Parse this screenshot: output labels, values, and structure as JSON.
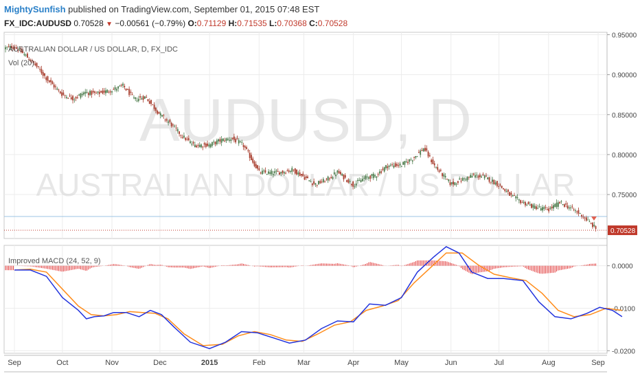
{
  "header": {
    "user": "MightySunfish",
    "published_text": " published on TradingView.com, September 01, 2015 07:48 EST",
    "symbol": "FX_IDC:AUDUSD",
    "last": "0.70528",
    "change": "−0.00561 (−0.79%)",
    "o_label": "O:",
    "o_value": "0.71129",
    "h_label": "H:",
    "h_value": "0.71535",
    "l_label": "L:",
    "l_value": "0.70368",
    "c_label": "C:",
    "c_value": "0.70528"
  },
  "watermark": {
    "big": "AUDUSD, D",
    "small": "AUSTRALIAN DOLLAR / US DOLLAR"
  },
  "colors": {
    "up": "#4a7a4a",
    "down": "#a63a2a",
    "macd_line": "#2233dd",
    "signal_line": "#ff8c1a",
    "hist": "#e03030",
    "price_tag": "#c0392b",
    "hline": "#9cc4e4"
  },
  "chart_data": [
    {
      "type": "candlestick",
      "title": "AUSTRALIAN DOLLAR / US DOLLAR, D, FX_IDC",
      "indicator_label": "Vol (20)",
      "ylim": [
        0.695,
        0.953
      ],
      "yticks": [
        "0.95000",
        "0.90000",
        "0.85000",
        "0.80000",
        "0.75000"
      ],
      "last_price_label": "0.70528",
      "reference_line": 0.7225,
      "x_ticks": [
        "Sep",
        "Oct",
        "Nov",
        "Dec",
        "2015",
        "Feb",
        "Mar",
        "Apr",
        "May",
        "Jun",
        "Jul",
        "Aug",
        "Sep"
      ],
      "close_path": [
        [
          "Aug 22",
          0.932
        ],
        [
          "Sep 1",
          0.935
        ],
        [
          "Sep 8",
          0.924
        ],
        [
          "Sep 15",
          0.91
        ],
        [
          "Sep 22",
          0.893
        ],
        [
          "Oct 1",
          0.875
        ],
        [
          "Oct 8",
          0.87
        ],
        [
          "Oct 15",
          0.878
        ],
        [
          "Oct 22",
          0.876
        ],
        [
          "Nov 1",
          0.881
        ],
        [
          "Nov 8",
          0.886
        ],
        [
          "Nov 15",
          0.869
        ],
        [
          "Nov 22",
          0.872
        ],
        [
          "Dec 1",
          0.85
        ],
        [
          "Dec 8",
          0.838
        ],
        [
          "Dec 15",
          0.823
        ],
        [
          "Dec 22",
          0.812
        ],
        [
          "Jan 1",
          0.812
        ],
        [
          "Jan 8",
          0.818
        ],
        [
          "Jan 15",
          0.82
        ],
        [
          "Jan 22",
          0.812
        ],
        [
          "Feb 1",
          0.778
        ],
        [
          "Feb 8",
          0.777
        ],
        [
          "Feb 15",
          0.778
        ],
        [
          "Feb 22",
          0.781
        ],
        [
          "Mar 1",
          0.772
        ],
        [
          "Mar 8",
          0.763
        ],
        [
          "Mar 15",
          0.768
        ],
        [
          "Mar 22",
          0.778
        ],
        [
          "Apr 1",
          0.762
        ],
        [
          "Apr 8",
          0.771
        ],
        [
          "Apr 15",
          0.774
        ],
        [
          "Apr 22",
          0.786
        ],
        [
          "May 1",
          0.787
        ],
        [
          "May 8",
          0.795
        ],
        [
          "May 15",
          0.808
        ],
        [
          "May 22",
          0.785
        ],
        [
          "Jun 1",
          0.763
        ],
        [
          "Jun 8",
          0.769
        ],
        [
          "Jun 15",
          0.774
        ],
        [
          "Jun 22",
          0.772
        ],
        [
          "Jul 1",
          0.762
        ],
        [
          "Jul 8",
          0.749
        ],
        [
          "Jul 15",
          0.741
        ],
        [
          "Jul 22",
          0.735
        ],
        [
          "Aug 1",
          0.731
        ],
        [
          "Aug 8",
          0.74
        ],
        [
          "Aug 15",
          0.733
        ],
        [
          "Aug 22",
          0.724
        ],
        [
          "Aug 27",
          0.714
        ],
        [
          "Sep 1",
          0.705
        ]
      ]
    },
    {
      "type": "line",
      "title": "Improved MACD (24, 52, 9)",
      "ylim": [
        -0.0206,
        0.0048
      ],
      "yticks": [
        "0.0000",
        "-0.0100",
        "-0.0200"
      ],
      "series": [
        {
          "name": "MACD",
          "points": [
            [
              0,
              -0.001
            ],
            [
              10,
              -0.001
            ],
            [
              20,
              -0.0025
            ],
            [
              30,
              -0.0075
            ],
            [
              40,
              -0.0105
            ],
            [
              45,
              -0.0125
            ],
            [
              50,
              -0.012
            ],
            [
              56,
              -0.0118
            ],
            [
              62,
              -0.011
            ],
            [
              70,
              -0.011
            ],
            [
              78,
              -0.012
            ],
            [
              85,
              -0.0105
            ],
            [
              92,
              -0.0115
            ],
            [
              100,
              -0.0145
            ],
            [
              110,
              -0.018
            ],
            [
              122,
              -0.0195
            ],
            [
              132,
              -0.018
            ],
            [
              142,
              -0.0155
            ],
            [
              152,
              -0.0158
            ],
            [
              162,
              -0.017
            ],
            [
              172,
              -0.0182
            ],
            [
              182,
              -0.0175
            ],
            [
              192,
              -0.0148
            ],
            [
              202,
              -0.013
            ],
            [
              212,
              -0.0132
            ],
            [
              222,
              -0.009
            ],
            [
              232,
              -0.0093
            ],
            [
              242,
              -0.0075
            ],
            [
              252,
              -0.0015
            ],
            [
              262,
              0.002
            ],
            [
              270,
              0.0045
            ],
            [
              278,
              0.003
            ],
            [
              286,
              -0.0015
            ],
            [
              296,
              -0.003
            ],
            [
              306,
              -0.003
            ],
            [
              318,
              -0.0035
            ],
            [
              328,
              -0.0085
            ],
            [
              338,
              -0.012
            ],
            [
              348,
              -0.0125
            ],
            [
              358,
              -0.0112
            ],
            [
              366,
              -0.0098
            ],
            [
              374,
              -0.0105
            ],
            [
              380,
              -0.012
            ]
          ]
        },
        {
          "name": "Signal",
          "points": [
            [
              0,
              -0.001
            ],
            [
              10,
              -0.0008
            ],
            [
              20,
              -0.0015
            ],
            [
              30,
              -0.0055
            ],
            [
              40,
              -0.0095
            ],
            [
              48,
              -0.0115
            ],
            [
              56,
              -0.0118
            ],
            [
              64,
              -0.0115
            ],
            [
              72,
              -0.0108
            ],
            [
              80,
              -0.011
            ],
            [
              88,
              -0.0112
            ],
            [
              96,
              -0.0125
            ],
            [
              106,
              -0.016
            ],
            [
              118,
              -0.0188
            ],
            [
              130,
              -0.0185
            ],
            [
              140,
              -0.0165
            ],
            [
              150,
              -0.0155
            ],
            [
              160,
              -0.0162
            ],
            [
              170,
              -0.0175
            ],
            [
              180,
              -0.0178
            ],
            [
              190,
              -0.016
            ],
            [
              200,
              -0.014
            ],
            [
              210,
              -0.0132
            ],
            [
              220,
              -0.0105
            ],
            [
              230,
              -0.0095
            ],
            [
              240,
              -0.0082
            ],
            [
              250,
              -0.004
            ],
            [
              260,
              -0.0005
            ],
            [
              270,
              0.003
            ],
            [
              280,
              0.003
            ],
            [
              290,
              0.0002
            ],
            [
              300,
              -0.002
            ],
            [
              310,
              -0.0028
            ],
            [
              320,
              -0.0035
            ],
            [
              330,
              -0.0065
            ],
            [
              340,
              -0.0105
            ],
            [
              350,
              -0.012
            ],
            [
              360,
              -0.0115
            ],
            [
              370,
              -0.01
            ],
            [
              380,
              -0.0105
            ]
          ]
        }
      ]
    }
  ]
}
